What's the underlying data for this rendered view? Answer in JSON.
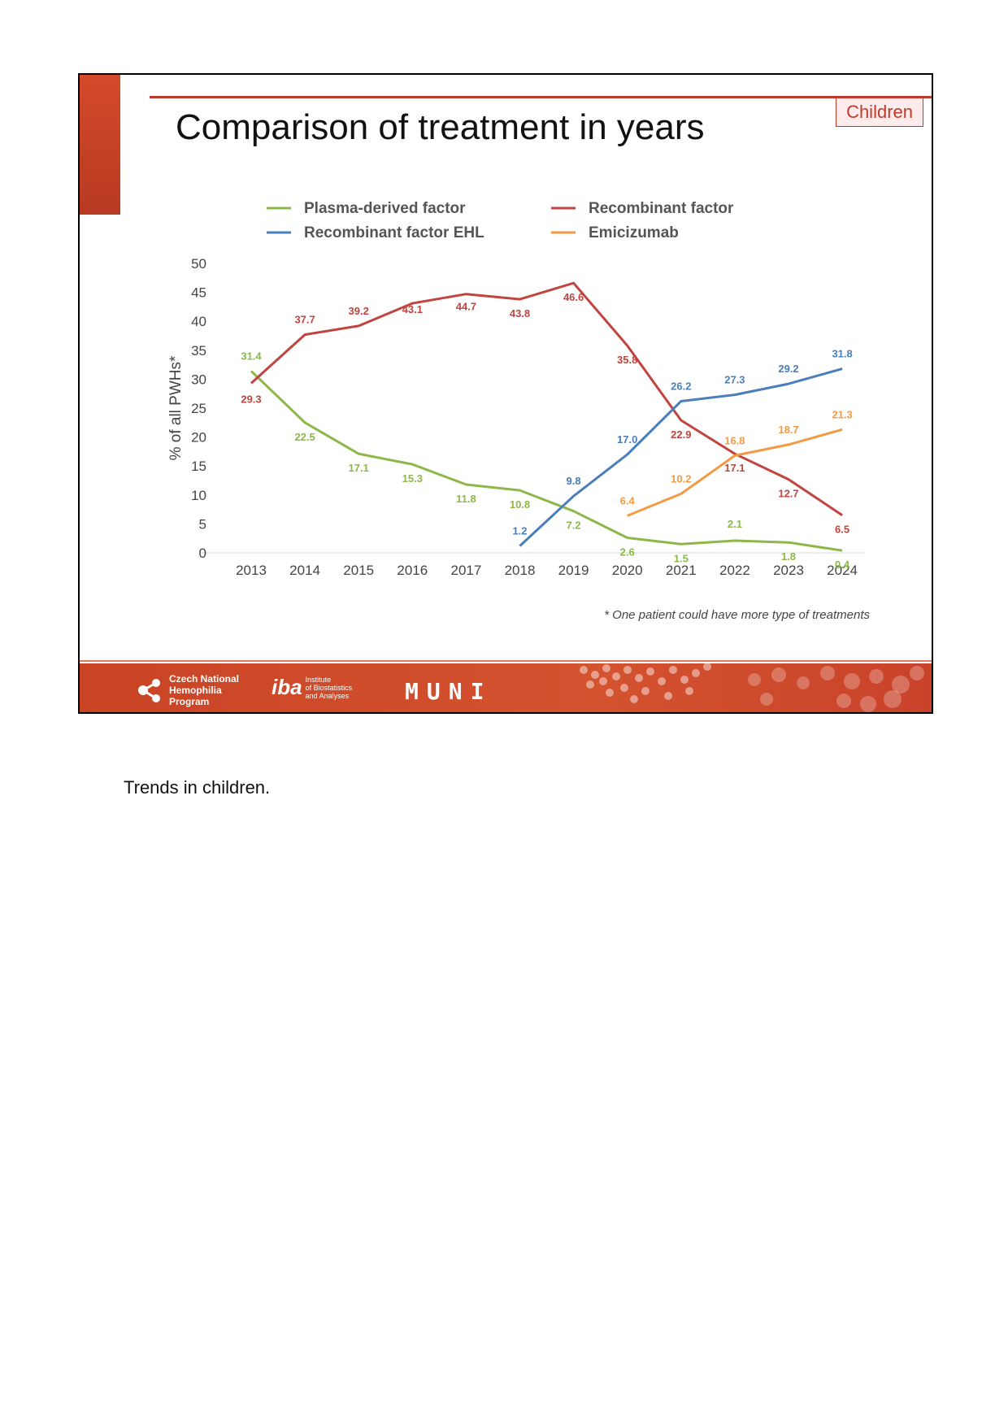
{
  "slide": {
    "title": "Comparison of treatment in years",
    "badge": "Children",
    "footnote": "* One patient could have more type of treatments"
  },
  "footer": {
    "logo_cnhp": [
      "Czech National",
      "Hemophilia",
      "Program"
    ],
    "logo_iba_mark": "iba",
    "logo_iba_text": [
      "Institute",
      "of Biostatistics",
      "and Analyses"
    ],
    "logo_muni": "MUNI"
  },
  "caption": "Trends in children.",
  "chart_data": {
    "type": "line",
    "title": "",
    "xlabel": "",
    "ylabel": "% of all PWHs*",
    "ylim": [
      0,
      50
    ],
    "yticks": [
      0,
      5,
      10,
      15,
      20,
      25,
      30,
      35,
      40,
      45,
      50
    ],
    "x": [
      "2013",
      "2014",
      "2015",
      "2016",
      "2017",
      "2018",
      "2019",
      "2020",
      "2021",
      "2022",
      "2023",
      "2024"
    ],
    "grid": false,
    "legend_position": "top",
    "series": [
      {
        "name": "Plasma-derived factor",
        "color": "#8db849",
        "values": [
          31.4,
          22.5,
          17.1,
          15.3,
          11.8,
          10.8,
          7.2,
          2.6,
          1.5,
          2.1,
          1.8,
          0.4
        ],
        "labels": [
          "31.4",
          "22.5",
          "17.1",
          "15.3",
          "11.8",
          "10.8",
          "7.2",
          "2.6",
          "1.5",
          "2.1",
          "1.8",
          "0.4"
        ]
      },
      {
        "name": "Recombinant factor",
        "color": "#c0443f",
        "values": [
          29.3,
          37.7,
          39.2,
          43.1,
          44.7,
          43.8,
          46.6,
          35.8,
          22.9,
          17.1,
          12.7,
          6.5
        ],
        "labels": [
          "29.3",
          "37.7",
          "39.2",
          "43.1",
          "44.7",
          "43.8",
          "46.6",
          "35.8",
          "22.9",
          "17.1",
          "12.7",
          "6.5"
        ]
      },
      {
        "name": "Recombinant factor EHL",
        "color": "#4a7ebb",
        "values": [
          null,
          null,
          null,
          null,
          null,
          1.2,
          9.8,
          17.0,
          26.2,
          27.3,
          29.2,
          31.8
        ],
        "labels": [
          null,
          null,
          null,
          null,
          null,
          "1.2",
          "9.8",
          "17.0",
          "26.2",
          "27.3",
          "29.2",
          "31.8"
        ]
      },
      {
        "name": "Emicizumab",
        "color": "#f39a45",
        "values": [
          null,
          null,
          null,
          null,
          null,
          null,
          null,
          6.4,
          10.2,
          16.8,
          18.7,
          21.3
        ],
        "labels": [
          null,
          null,
          null,
          null,
          null,
          null,
          null,
          "6.4",
          "10.2",
          "16.8",
          "18.7",
          "21.3"
        ]
      }
    ]
  }
}
